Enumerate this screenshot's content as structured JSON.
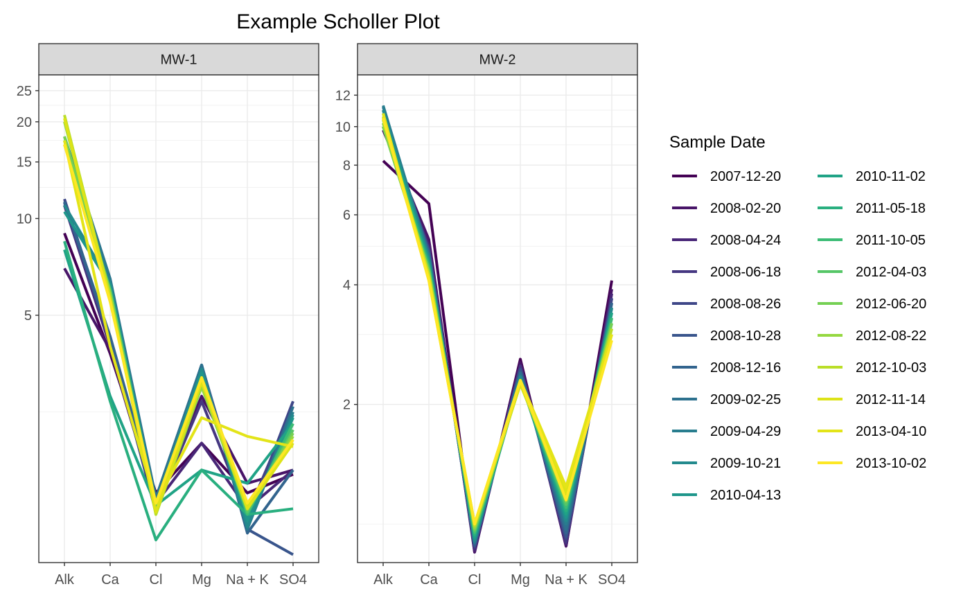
{
  "chart_data": {
    "type": "line",
    "title": "Example Scholler Plot",
    "y_scale": "log",
    "grid": true,
    "legend_placement": "right",
    "legend_title": "Sample Date",
    "categories": [
      "Alk",
      "Ca",
      "Cl",
      "Mg",
      "Na + K",
      "SO4"
    ],
    "series_names": [
      "2007-12-20",
      "2008-02-20",
      "2008-04-24",
      "2008-06-18",
      "2008-08-26",
      "2008-10-28",
      "2008-12-16",
      "2009-02-25",
      "2009-04-29",
      "2009-10-21",
      "2010-04-13",
      "2010-11-02",
      "2011-05-18",
      "2011-10-05",
      "2012-04-03",
      "2012-06-20",
      "2012-08-22",
      "2012-10-03",
      "2012-11-14",
      "2013-04-10",
      "2013-10-02"
    ],
    "series_colors": [
      "#440154",
      "#481568",
      "#482677",
      "#453781",
      "#3F4788",
      "#39558C",
      "#32648E",
      "#2D718E",
      "#287D8E",
      "#238A8D",
      "#1F968B",
      "#20A386",
      "#29AF7F",
      "#3CBC75",
      "#56C667",
      "#75D054",
      "#95D840",
      "#BADE28",
      "#DDE318",
      "#E3E418",
      "#FDE725"
    ],
    "panels": [
      {
        "strip_label": "MW-1",
        "ylim": [
          0.85,
          28
        ],
        "y_ticks": [
          5,
          10,
          15,
          20,
          25
        ],
        "series": [
          {
            "name": "2007-12-20",
            "values": [
              9.0,
              3.8,
              1.4,
              2.0,
              1.4,
              1.6
            ]
          },
          {
            "name": "2008-02-20",
            "values": [
              7.0,
              3.9,
              1.3,
              2.8,
              1.5,
              1.65
            ]
          },
          {
            "name": "2008-04-24",
            "values": [
              11.0,
              4.0,
              1.3,
              2.0,
              1.25,
              1.65
            ]
          },
          {
            "name": "2008-06-18",
            "values": [
              11.0,
              4.1,
              1.25,
              2.7,
              1.2,
              2.6
            ]
          },
          {
            "name": "2008-08-26",
            "values": [
              11.5,
              4.2,
              1.22,
              3.5,
              1.15,
              2.7
            ]
          },
          {
            "name": "2008-10-28",
            "values": [
              11.2,
              4.2,
              1.3,
              3.5,
              1.08,
              0.9
            ]
          },
          {
            "name": "2008-12-16",
            "values": [
              11.3,
              4.3,
              1.35,
              3.5,
              1.05,
              1.65
            ]
          },
          {
            "name": "2009-02-25",
            "values": [
              18.0,
              6.5,
              1.35,
              3.5,
              1.1,
              2.6
            ]
          },
          {
            "name": "2009-04-29",
            "values": [
              17.5,
              6.4,
              1.3,
              3.4,
              1.08,
              2.5
            ]
          },
          {
            "name": "2009-10-21",
            "values": [
              11.0,
              6.3,
              1.3,
              3.4,
              1.1,
              2.45
            ]
          },
          {
            "name": "2010-04-13",
            "values": [
              10.5,
              6.2,
              1.28,
              3.3,
              1.15,
              2.4
            ]
          },
          {
            "name": "2010-11-02",
            "values": [
              8.0,
              2.8,
              1.28,
              1.65,
              1.5,
              2.3
            ]
          },
          {
            "name": "2011-05-18",
            "values": [
              8.5,
              2.7,
              1.0,
              1.65,
              1.2,
              1.25
            ]
          },
          {
            "name": "2011-10-05",
            "values": [
              17.0,
              6.0,
              1.25,
              3.2,
              1.2,
              2.3
            ]
          },
          {
            "name": "2012-04-03",
            "values": [
              17.5,
              6.0,
              1.25,
              3.1,
              1.22,
              2.2
            ]
          },
          {
            "name": "2012-06-20",
            "values": [
              18.0,
              5.9,
              1.22,
              3.0,
              1.24,
              2.15
            ]
          },
          {
            "name": "2012-08-22",
            "values": [
              20.0,
              5.8,
              1.2,
              3.0,
              1.25,
              2.1
            ]
          },
          {
            "name": "2012-10-03",
            "values": [
              21.0,
              5.7,
              1.2,
              3.1,
              1.26,
              2.05
            ]
          },
          {
            "name": "2012-11-14",
            "values": [
              20.5,
              5.6,
              1.22,
              3.1,
              1.25,
              2.0
            ]
          },
          {
            "name": "2013-04-10",
            "values": [
              17.5,
              4.0,
              1.3,
              2.4,
              2.1,
              1.95
            ]
          },
          {
            "name": "2013-10-02",
            "values": [
              17.0,
              5.5,
              1.3,
              3.2,
              1.3,
              2.05
            ]
          }
        ]
      },
      {
        "strip_label": "MW-2",
        "ylim": [
          0.8,
          13.5
        ],
        "y_ticks": [
          2,
          4,
          6,
          8,
          10,
          12
        ],
        "series": [
          {
            "name": "2007-12-20",
            "values": [
              8.2,
              6.4,
              0.85,
              2.6,
              0.88,
              4.1
            ]
          },
          {
            "name": "2008-02-20",
            "values": [
              9.8,
              5.2,
              0.85,
              2.55,
              0.88,
              3.9
            ]
          },
          {
            "name": "2008-04-24",
            "values": [
              10.0,
              5.0,
              0.86,
              2.5,
              0.89,
              3.8
            ]
          },
          {
            "name": "2008-06-18",
            "values": [
              10.2,
              4.9,
              0.87,
              2.5,
              0.9,
              3.7
            ]
          },
          {
            "name": "2008-08-26",
            "values": [
              10.5,
              4.9,
              0.88,
              2.45,
              0.92,
              3.7
            ]
          },
          {
            "name": "2008-10-28",
            "values": [
              10.8,
              4.8,
              0.88,
              2.45,
              0.93,
              3.6
            ]
          },
          {
            "name": "2008-12-16",
            "values": [
              11.0,
              4.8,
              0.89,
              2.4,
              0.95,
              3.6
            ]
          },
          {
            "name": "2009-02-25",
            "values": [
              11.2,
              4.7,
              0.9,
              2.4,
              0.97,
              3.5
            ]
          },
          {
            "name": "2009-04-29",
            "values": [
              11.3,
              4.7,
              0.9,
              2.35,
              1.0,
              3.5
            ]
          },
          {
            "name": "2009-10-21",
            "values": [
              11.0,
              4.6,
              0.91,
              2.35,
              1.02,
              3.5
            ]
          },
          {
            "name": "2010-04-13",
            "values": [
              10.8,
              4.6,
              0.92,
              2.3,
              1.04,
              3.4
            ]
          },
          {
            "name": "2010-11-02",
            "values": [
              10.6,
              4.5,
              0.93,
              2.3,
              1.06,
              3.4
            ]
          },
          {
            "name": "2011-05-18",
            "values": [
              10.4,
              4.5,
              0.94,
              2.3,
              1.08,
              3.3
            ]
          },
          {
            "name": "2011-10-05",
            "values": [
              10.2,
              4.4,
              0.95,
              2.3,
              1.1,
              3.3
            ]
          },
          {
            "name": "2012-04-03",
            "values": [
              10.0,
              4.4,
              0.96,
              2.28,
              1.12,
              3.2
            ]
          },
          {
            "name": "2012-06-20",
            "values": [
              10.0,
              4.3,
              0.97,
              2.28,
              1.14,
              3.2
            ]
          },
          {
            "name": "2012-08-22",
            "values": [
              10.2,
              4.3,
              0.98,
              2.25,
              1.16,
              3.1
            ]
          },
          {
            "name": "2012-10-03",
            "values": [
              10.4,
              4.2,
              0.99,
              2.25,
              1.18,
              3.1
            ]
          },
          {
            "name": "2012-11-14",
            "values": [
              10.6,
              4.2,
              1.0,
              2.25,
              1.2,
              3.0
            ]
          },
          {
            "name": "2013-04-10",
            "values": [
              10.8,
              4.1,
              1.0,
              2.3,
              1.24,
              3.0
            ]
          },
          {
            "name": "2013-10-02",
            "values": [
              10.5,
              4.1,
              1.0,
              2.3,
              1.15,
              2.9
            ]
          }
        ]
      }
    ]
  }
}
